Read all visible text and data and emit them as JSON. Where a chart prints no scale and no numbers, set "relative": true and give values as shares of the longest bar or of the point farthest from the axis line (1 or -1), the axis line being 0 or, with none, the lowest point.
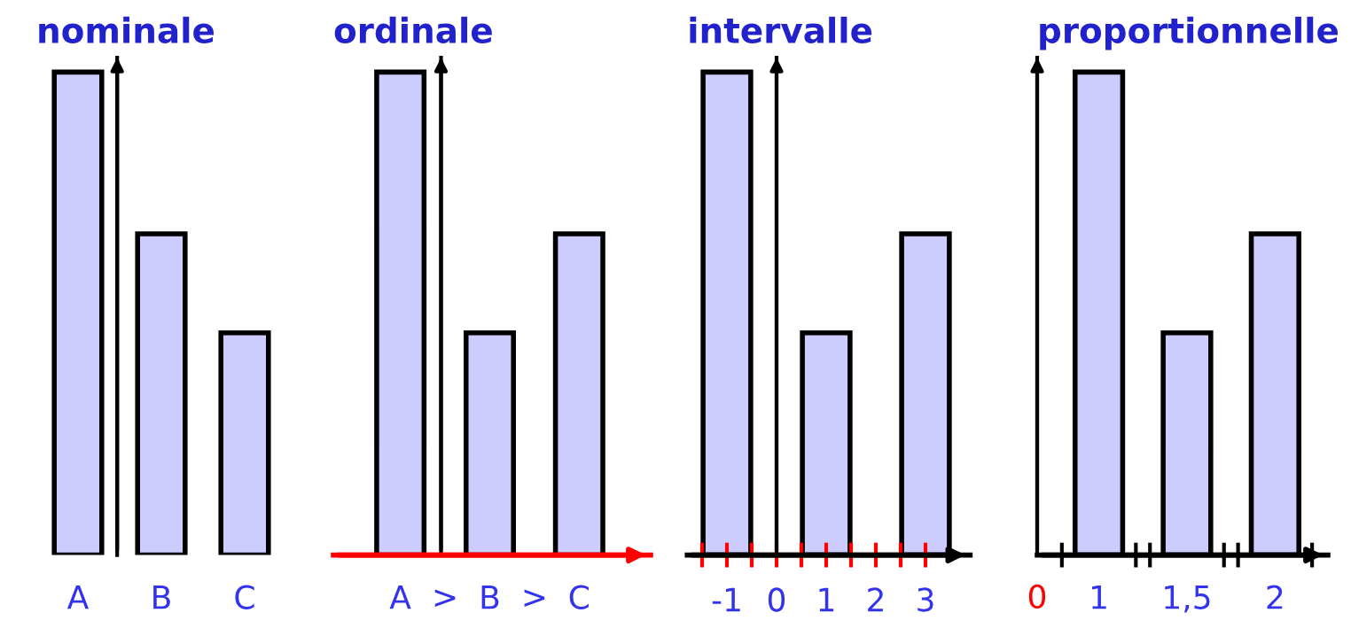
{
  "chart_data": [
    {
      "type": "bar",
      "title": "nominale",
      "relative": true,
      "categories": [
        "A",
        "B",
        "C"
      ],
      "series": [
        {
          "color": "#ccccff",
          "values": [
            1,
            0.665,
            0.46
          ]
        }
      ]
    },
    {
      "type": "bar",
      "title": "ordinale",
      "relative": true,
      "categories": [
        "A",
        "B",
        "C"
      ],
      "series": [
        {
          "color": "#ccccff",
          "values": [
            1,
            0.46,
            0.665
          ]
        }
      ],
      "annotations": [
        ">",
        ">"
      ]
    },
    {
      "type": "bar",
      "title": "intervalle",
      "relative": true,
      "x": [
        -1,
        1,
        3
      ],
      "xlim": [
        -1.8,
        3.9
      ],
      "xticks": [
        {
          "value": -1.5,
          "label": null
        },
        {
          "value": -1,
          "label": "-1"
        },
        {
          "value": -0.5,
          "label": null
        },
        {
          "value": 0,
          "label": "0"
        },
        {
          "value": 0.5,
          "label": null
        },
        {
          "value": 1,
          "label": "1"
        },
        {
          "value": 1.5,
          "label": null
        },
        {
          "value": 2,
          "label": "2"
        },
        {
          "value": 2.5,
          "label": null
        },
        {
          "value": 3,
          "label": "3"
        }
      ],
      "series": [
        {
          "color": "#ccccff",
          "values": [
            1,
            0.46,
            0.665
          ]
        }
      ]
    },
    {
      "type": "bar",
      "title": "proportionnelle",
      "relative": true,
      "categories": [
        "1",
        "1,5",
        "2"
      ],
      "series": [
        {
          "color": "#ccccff",
          "values": [
            1,
            0.46,
            0.665
          ]
        }
      ],
      "annotations": [
        "0"
      ]
    }
  ]
}
